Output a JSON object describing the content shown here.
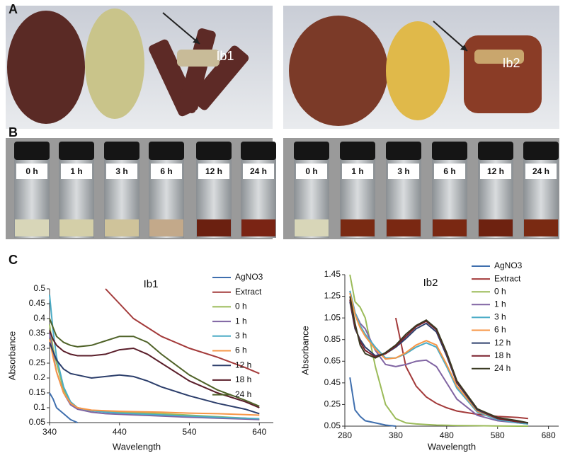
{
  "panel_labels": [
    "A",
    "B",
    "C"
  ],
  "photo_labels": [
    "Ib1",
    "Ib2"
  ],
  "vial_labels": [
    [
      "0 h",
      "1 h",
      "3 h",
      "6 h",
      "12 h",
      "24 h"
    ],
    [
      "0 h",
      "1 h",
      "3 h",
      "6 h",
      "12 h",
      "24 h"
    ]
  ],
  "chart_data": [
    {
      "type": "line",
      "title": "Ib1",
      "xlabel": "Wavelength",
      "ylabel": "Absorbance",
      "x": [
        340,
        345,
        350,
        360,
        370,
        380,
        400,
        420,
        440,
        460,
        480,
        500,
        540,
        580,
        620,
        640
      ],
      "xlim": [
        340,
        660
      ],
      "xticks": [
        340,
        440,
        540,
        640
      ],
      "ylim": [
        0.05,
        0.5
      ],
      "yticks": [
        0.05,
        0.1,
        0.15,
        0.2,
        0.25,
        0.3,
        0.35,
        0.4,
        0.45,
        0.5
      ],
      "legend": "right",
      "series": [
        {
          "name": "AgNO3",
          "color": "#3f6fae",
          "values": [
            0.15,
            0.13,
            0.1,
            0.08,
            0.06,
            0.05,
            null,
            null,
            null,
            null,
            null,
            null,
            null,
            null,
            null,
            null
          ]
        },
        {
          "name": "Extract",
          "color": "#a33a3a",
          "values": [
            null,
            null,
            null,
            null,
            null,
            null,
            null,
            0.5,
            0.45,
            0.4,
            0.37,
            0.34,
            0.3,
            0.27,
            0.235,
            0.215
          ]
        },
        {
          "name": "0 h",
          "color": "#9bbb59",
          "values": [
            0.38,
            0.3,
            0.25,
            0.16,
            0.12,
            0.1,
            0.09,
            0.087,
            0.085,
            0.083,
            0.082,
            0.08,
            0.075,
            0.07,
            0.065,
            0.06
          ]
        },
        {
          "name": "1 h",
          "color": "#8064a2",
          "values": [
            0.35,
            0.28,
            0.22,
            0.15,
            0.11,
            0.095,
            0.085,
            0.08,
            0.078,
            0.076,
            0.074,
            0.072,
            0.068,
            0.065,
            0.062,
            0.06
          ]
        },
        {
          "name": "3 h",
          "color": "#4bacc6",
          "values": [
            0.48,
            0.36,
            0.27,
            0.17,
            0.12,
            0.1,
            0.09,
            0.085,
            0.082,
            0.08,
            0.078,
            0.076,
            0.072,
            0.068,
            0.065,
            0.063
          ]
        },
        {
          "name": "6 h",
          "color": "#f79646",
          "values": [
            0.33,
            0.27,
            0.22,
            0.15,
            0.115,
            0.1,
            0.092,
            0.09,
            0.088,
            0.087,
            0.086,
            0.085,
            0.082,
            0.08,
            0.077,
            0.075
          ]
        },
        {
          "name": "12 h",
          "color": "#2c3e6b",
          "values": [
            0.32,
            0.29,
            0.26,
            0.23,
            0.215,
            0.21,
            0.2,
            0.205,
            0.21,
            0.205,
            0.19,
            0.17,
            0.14,
            0.115,
            0.095,
            0.08
          ]
        },
        {
          "name": "18 h",
          "color": "#5a1e2a",
          "values": [
            0.36,
            0.33,
            0.31,
            0.29,
            0.28,
            0.275,
            0.275,
            0.28,
            0.295,
            0.3,
            0.28,
            0.25,
            0.19,
            0.15,
            0.12,
            0.1
          ]
        },
        {
          "name": "24 h",
          "color": "#4f6228",
          "values": [
            0.4,
            0.37,
            0.34,
            0.32,
            0.31,
            0.305,
            0.31,
            0.325,
            0.34,
            0.34,
            0.32,
            0.28,
            0.21,
            0.16,
            0.125,
            0.105
          ]
        }
      ]
    },
    {
      "type": "line",
      "title": "Ib2",
      "xlabel": "Wavelength",
      "ylabel": "Absorbance",
      "x": [
        290,
        300,
        310,
        320,
        340,
        360,
        380,
        400,
        420,
        440,
        460,
        480,
        500,
        540,
        580,
        620,
        640
      ],
      "xlim": [
        280,
        700
      ],
      "xticks": [
        280,
        380,
        480,
        580,
        680
      ],
      "ylim": [
        0.05,
        1.45
      ],
      "yticks": [
        0.05,
        0.25,
        0.45,
        0.65,
        0.85,
        1.05,
        1.25,
        1.45
      ],
      "legend": "right",
      "series": [
        {
          "name": "AgNO3",
          "color": "#3f6fae",
          "values": [
            0.5,
            0.2,
            0.14,
            0.1,
            0.08,
            0.06,
            0.05,
            null,
            null,
            null,
            null,
            null,
            null,
            null,
            null,
            null,
            null
          ]
        },
        {
          "name": "Extract",
          "color": "#a33a3a",
          "values": [
            null,
            null,
            null,
            null,
            null,
            null,
            1.05,
            0.6,
            0.42,
            0.32,
            0.26,
            0.22,
            0.19,
            0.16,
            0.14,
            0.13,
            0.12
          ]
        },
        {
          "name": "0 h",
          "color": "#9bbb59",
          "values": [
            1.45,
            1.2,
            1.15,
            1.05,
            0.6,
            0.25,
            0.12,
            0.08,
            0.07,
            0.065,
            0.06,
            0.058,
            0.056,
            0.054,
            0.052,
            0.05,
            0.05
          ]
        },
        {
          "name": "1 h",
          "color": "#8064a2",
          "values": [
            1.3,
            1.1,
            1.0,
            0.95,
            0.75,
            0.62,
            0.6,
            0.62,
            0.65,
            0.66,
            0.6,
            0.45,
            0.3,
            0.15,
            0.1,
            0.08,
            0.07
          ]
        },
        {
          "name": "3 h",
          "color": "#4bacc6",
          "values": [
            1.3,
            1.1,
            0.98,
            0.9,
            0.78,
            0.68,
            0.68,
            0.72,
            0.78,
            0.82,
            0.78,
            0.6,
            0.4,
            0.18,
            0.11,
            0.08,
            0.07
          ]
        },
        {
          "name": "6 h",
          "color": "#f79646",
          "values": [
            1.28,
            1.08,
            0.96,
            0.88,
            0.76,
            0.67,
            0.68,
            0.73,
            0.8,
            0.84,
            0.8,
            0.62,
            0.42,
            0.19,
            0.12,
            0.09,
            0.08
          ]
        },
        {
          "name": "12 h",
          "color": "#2c3e6b",
          "values": [
            1.2,
            0.95,
            0.85,
            0.78,
            0.7,
            0.72,
            0.78,
            0.86,
            0.95,
            1.0,
            0.92,
            0.7,
            0.45,
            0.2,
            0.12,
            0.09,
            0.08
          ]
        },
        {
          "name": "18 h",
          "color": "#7a1f2b",
          "values": [
            1.22,
            0.97,
            0.83,
            0.75,
            0.69,
            0.72,
            0.79,
            0.88,
            0.97,
            1.02,
            0.94,
            0.72,
            0.46,
            0.21,
            0.12,
            0.09,
            0.08
          ]
        },
        {
          "name": "24 h",
          "color": "#3a3a22",
          "values": [
            1.25,
            1.0,
            0.8,
            0.72,
            0.68,
            0.73,
            0.8,
            0.9,
            0.98,
            1.03,
            0.95,
            0.73,
            0.47,
            0.21,
            0.13,
            0.1,
            0.08
          ]
        }
      ]
    }
  ]
}
